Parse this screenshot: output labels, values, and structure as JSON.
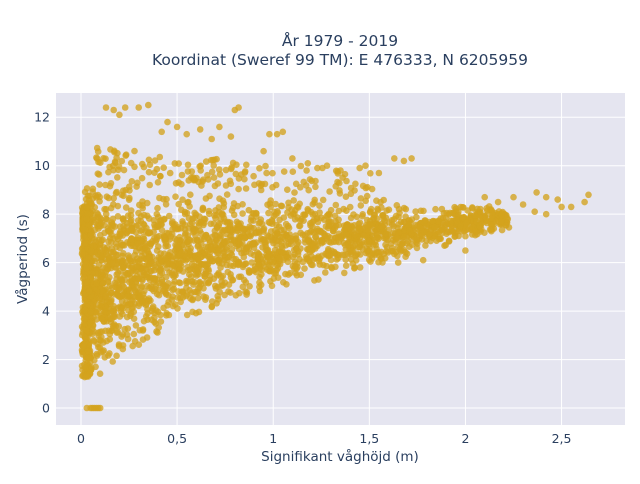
{
  "chart_data": {
    "type": "scatter",
    "title_line1": "År 1979 - 2019",
    "title_line2": "Koordinat (Sweref 99 TM): E 476333, N 6205959",
    "xlabel": "Signifikant våghöjd (m)",
    "ylabel": "Vågperiod (s)",
    "xlim": [
      -0.13,
      2.83
    ],
    "ylim": [
      -0.7,
      13.0
    ],
    "x_ticks": [
      0,
      0.5,
      1,
      1.5,
      2,
      2.5
    ],
    "x_tick_labels": [
      "0",
      "0,5",
      "1",
      "1,5",
      "2",
      "2,5"
    ],
    "y_ticks": [
      0,
      2,
      4,
      6,
      8,
      10,
      12
    ],
    "y_tick_labels": [
      "0",
      "2",
      "4",
      "6",
      "8",
      "10",
      "12"
    ],
    "grid": true,
    "legend": false,
    "marker_color": "#D4A31E",
    "background_color": "#E5E5F0",
    "distribution": {
      "core_envelope": [
        {
          "x": 0.02,
          "ymin": 1.2,
          "ymax": 9.5
        },
        {
          "x": 0.1,
          "ymin": 1.3,
          "ymax": 9.6
        },
        {
          "x": 0.2,
          "ymin": 1.8,
          "ymax": 9.5
        },
        {
          "x": 0.3,
          "ymin": 2.5,
          "ymax": 9.2
        },
        {
          "x": 0.5,
          "ymin": 3.3,
          "ymax": 9.2
        },
        {
          "x": 0.75,
          "ymin": 4.2,
          "ymax": 9.0
        },
        {
          "x": 1.0,
          "ymin": 4.7,
          "ymax": 8.9
        },
        {
          "x": 1.25,
          "ymin": 5.2,
          "ymax": 8.8
        },
        {
          "x": 1.5,
          "ymin": 5.7,
          "ymax": 8.5
        },
        {
          "x": 1.75,
          "ymin": 6.3,
          "ymax": 8.3
        },
        {
          "x": 2.0,
          "ymin": 6.9,
          "ymax": 8.5
        },
        {
          "x": 2.2,
          "ymin": 7.3,
          "ymax": 8.3
        }
      ],
      "outliers": [
        [
          0.13,
          12.4
        ],
        [
          0.17,
          12.3
        ],
        [
          0.2,
          12.1
        ],
        [
          0.23,
          12.4
        ],
        [
          0.3,
          12.4
        ],
        [
          0.35,
          12.5
        ],
        [
          0.42,
          11.4
        ],
        [
          0.45,
          11.8
        ],
        [
          0.5,
          11.6
        ],
        [
          0.55,
          11.3
        ],
        [
          0.62,
          11.5
        ],
        [
          0.68,
          11.1
        ],
        [
          0.72,
          11.6
        ],
        [
          0.78,
          11.2
        ],
        [
          0.8,
          12.3
        ],
        [
          0.82,
          12.4
        ],
        [
          0.98,
          11.3
        ],
        [
          1.02,
          11.3
        ],
        [
          1.05,
          11.4
        ],
        [
          0.95,
          10.6
        ],
        [
          1.1,
          10.3
        ],
        [
          1.18,
          10.1
        ],
        [
          1.23,
          9.9
        ],
        [
          1.28,
          10.0
        ],
        [
          1.35,
          9.8
        ],
        [
          1.45,
          9.9
        ],
        [
          1.48,
          10.0
        ],
        [
          1.55,
          9.7
        ],
        [
          1.63,
          10.3
        ],
        [
          1.72,
          10.3
        ],
        [
          1.68,
          10.2
        ],
        [
          2.1,
          8.7
        ],
        [
          2.17,
          8.5
        ],
        [
          2.25,
          8.7
        ],
        [
          2.3,
          8.4
        ],
        [
          2.37,
          8.9
        ],
        [
          2.42,
          8.7
        ],
        [
          2.48,
          8.6
        ],
        [
          2.36,
          8.1
        ],
        [
          2.42,
          8.0
        ],
        [
          2.5,
          8.3
        ],
        [
          2.55,
          8.3
        ],
        [
          2.62,
          8.5
        ],
        [
          2.64,
          8.8
        ],
        [
          2.0,
          6.5
        ],
        [
          1.78,
          6.1
        ],
        [
          1.65,
          6.0
        ],
        [
          0.03,
          0
        ],
        [
          0.05,
          0
        ],
        [
          0.06,
          0
        ],
        [
          0.07,
          0
        ],
        [
          0.08,
          0
        ],
        [
          0.09,
          0
        ],
        [
          0.1,
          0
        ]
      ]
    }
  }
}
